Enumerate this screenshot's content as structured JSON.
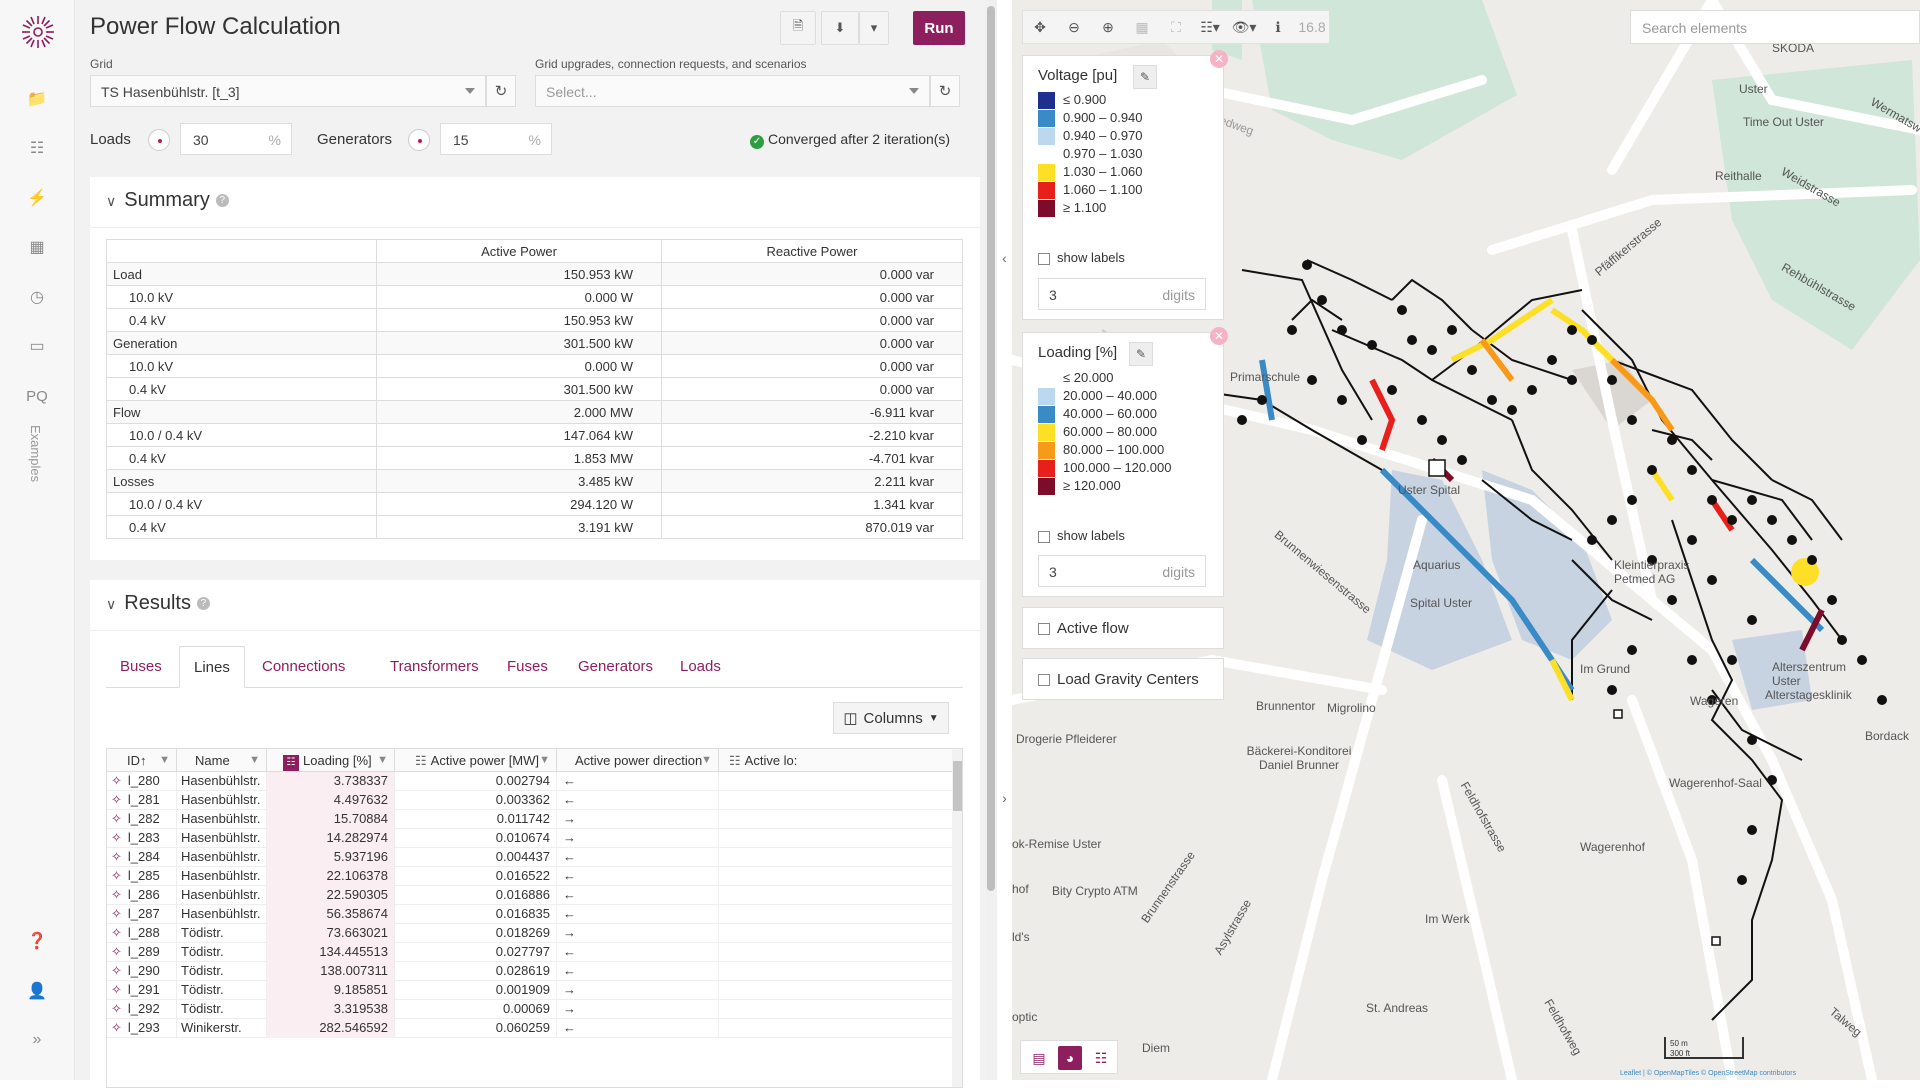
{
  "app": {
    "title": "Power Flow Calculation",
    "run_label": "Run"
  },
  "sidebar": {
    "examples_label": "Examples",
    "pq_label": "PQ"
  },
  "grid": {
    "label": "Grid",
    "value": "TS Hasenbühlstr. [t_3]"
  },
  "scenarios": {
    "label": "Grid upgrades, connection requests, and scenarios",
    "placeholder": "Select..."
  },
  "loads": {
    "label": "Loads",
    "value": "30",
    "unit": "%"
  },
  "generators": {
    "label": "Generators",
    "value": "15",
    "unit": "%"
  },
  "status": "Converged after 2 iteration(s)",
  "summary": {
    "title": "Summary",
    "headers": [
      "",
      "Active Power",
      "Reactive Power"
    ],
    "rows": [
      {
        "name": "Load",
        "p": "150.953 kW",
        "q": "0.000 var",
        "group": true
      },
      {
        "name": "10.0 kV",
        "p": "0.000 W",
        "q": "0.000 var",
        "group": false
      },
      {
        "name": "0.4 kV",
        "p": "150.953 kW",
        "q": "0.000 var",
        "group": false
      },
      {
        "name": "Generation",
        "p": "301.500 kW",
        "q": "0.000 var",
        "group": true
      },
      {
        "name": "10.0 kV",
        "p": "0.000 W",
        "q": "0.000 var",
        "group": false
      },
      {
        "name": "0.4 kV",
        "p": "301.500 kW",
        "q": "0.000 var",
        "group": false
      },
      {
        "name": "Flow",
        "p": "2.000 MW",
        "q": "-6.911 kvar",
        "group": true
      },
      {
        "name": "10.0 / 0.4 kV",
        "p": "147.064 kW",
        "q": "-2.210 kvar",
        "group": false
      },
      {
        "name": "0.4 kV",
        "p": "1.853 MW",
        "q": "-4.701 kvar",
        "group": false
      },
      {
        "name": "Losses",
        "p": "3.485 kW",
        "q": "2.211 kvar",
        "group": true
      },
      {
        "name": "10.0 / 0.4 kV",
        "p": "294.120 W",
        "q": "1.341 kvar",
        "group": false
      },
      {
        "name": "0.4 kV",
        "p": "3.191 kW",
        "q": "870.019 var",
        "group": false
      }
    ]
  },
  "results": {
    "title": "Results",
    "tabs": [
      "Buses",
      "Lines",
      "Connections",
      "Transformers",
      "Fuses",
      "Generators",
      "Loads"
    ],
    "active_tab": "Lines",
    "columns_label": "Columns",
    "headers": [
      "ID",
      "Name",
      "Loading [%]",
      "Active power [MW]",
      "Active power direction",
      "Active lo:"
    ],
    "rows": [
      {
        "id": "l_280",
        "name": "Hasenbühlstr.",
        "loading": "3.738337",
        "power": "0.002794",
        "dir": "←"
      },
      {
        "id": "l_281",
        "name": "Hasenbühlstr.",
        "loading": "4.497632",
        "power": "0.003362",
        "dir": "←"
      },
      {
        "id": "l_282",
        "name": "Hasenbühlstr.",
        "loading": "15.70884",
        "power": "0.011742",
        "dir": "→"
      },
      {
        "id": "l_283",
        "name": "Hasenbühlstr.",
        "loading": "14.282974",
        "power": "0.010674",
        "dir": "→"
      },
      {
        "id": "l_284",
        "name": "Hasenbühlstr.",
        "loading": "5.937196",
        "power": "0.004437",
        "dir": "←"
      },
      {
        "id": "l_285",
        "name": "Hasenbühlstr.",
        "loading": "22.106378",
        "power": "0.016522",
        "dir": "←"
      },
      {
        "id": "l_286",
        "name": "Hasenbühlstr.",
        "loading": "22.590305",
        "power": "0.016886",
        "dir": "←"
      },
      {
        "id": "l_287",
        "name": "Hasenbühlstr.",
        "loading": "56.358674",
        "power": "0.016835",
        "dir": "←"
      },
      {
        "id": "l_288",
        "name": "Tödistr.",
        "loading": "73.663021",
        "power": "0.018269",
        "dir": "→"
      },
      {
        "id": "l_289",
        "name": "Tödistr.",
        "loading": "134.445513",
        "power": "0.027797",
        "dir": "←"
      },
      {
        "id": "l_290",
        "name": "Tödistr.",
        "loading": "138.007311",
        "power": "0.028619",
        "dir": "←"
      },
      {
        "id": "l_291",
        "name": "Tödistr.",
        "loading": "9.185851",
        "power": "0.001909",
        "dir": "→"
      },
      {
        "id": "l_292",
        "name": "Tödistr.",
        "loading": "3.319538",
        "power": "0.00069",
        "dir": "→"
      },
      {
        "id": "l_293",
        "name": "Winikerstr.",
        "loading": "282.546592",
        "power": "0.060259",
        "dir": "←"
      }
    ]
  },
  "map": {
    "zoom": "16.8",
    "search_placeholder": "Search elements",
    "voltage_legend": {
      "title": "Voltage [pu]",
      "items": [
        {
          "label": "≤ 0.900",
          "color": "#1f2f8f"
        },
        {
          "label": "0.900  –  0.940",
          "color": "#3a8ac6"
        },
        {
          "label": "0.940  –  0.970",
          "color": "#bcd8ef"
        },
        {
          "label": "0.970  –  1.030",
          "color": "#ffffff"
        },
        {
          "label": "1.030  –  1.060",
          "color": "#fde025"
        },
        {
          "label": "1.060  –  1.100",
          "color": "#e8201c"
        },
        {
          "label": "≥ 1.100",
          "color": "#7d0c2a"
        }
      ],
      "show_labels": "show labels",
      "digits_value": "3",
      "digits_label": "digits"
    },
    "loading_legend": {
      "title": "Loading [%]",
      "items": [
        {
          "label": "≤ 20.000",
          "color": "#ffffff"
        },
        {
          "label": "20.000  –  40.000",
          "color": "#bcd8ef"
        },
        {
          "label": "40.000  –  60.000",
          "color": "#3a8ac6"
        },
        {
          "label": "60.000  –  80.000",
          "color": "#fde025"
        },
        {
          "label": "80.000  –  100.000",
          "color": "#f79a1a"
        },
        {
          "label": "100.000  –  120.000",
          "color": "#e8201c"
        },
        {
          "label": "≥ 120.000",
          "color": "#7d0c2a"
        }
      ],
      "show_labels": "show labels",
      "digits_value": "3",
      "digits_label": "digits"
    },
    "active_flow": "Active flow",
    "load_gravity": "Load Gravity Centers",
    "labels": [
      {
        "text": "SKODA"
      },
      {
        "text": "Uster"
      },
      {
        "text": "Time Out Uster"
      },
      {
        "text": "Reithalle"
      },
      {
        "text": "Weidstrasse"
      },
      {
        "text": "Wermatsw"
      },
      {
        "text": "Rehbühlstrasse"
      },
      {
        "text": "Pfäffikerstrasse"
      },
      {
        "text": "Langwiedweg"
      },
      {
        "text": "Primarschule"
      },
      {
        "text": "Uster Spital"
      },
      {
        "text": "Aquarius"
      },
      {
        "text": "Spital Uster"
      },
      {
        "text": "Brunnenwiesenstrasse"
      },
      {
        "text": "Kleintierpraxis Petmed AG"
      },
      {
        "text": "Im Grund"
      },
      {
        "text": "Alterszentrum Uster"
      },
      {
        "text": "Alterstagesklinik"
      },
      {
        "text": "Brunnentor"
      },
      {
        "text": "Migrolino"
      },
      {
        "text": "Drogerie Pfleiderer"
      },
      {
        "text": "Bäckerei-Konditorei Daniel Brunner"
      },
      {
        "text": "Wageren"
      },
      {
        "text": "Wagerenhof-Saal"
      },
      {
        "text": "Wagerenhof"
      },
      {
        "text": "Bordack"
      },
      {
        "text": "Feldhofstrasse"
      },
      {
        "text": "ok-Remise Uster"
      },
      {
        "text": "Bity Crypto ATM"
      },
      {
        "text": "Brunnenstrasse"
      },
      {
        "text": "Asylstrasse"
      },
      {
        "text": "Im Werk"
      },
      {
        "text": "St. Andreas"
      },
      {
        "text": "Diem"
      },
      {
        "text": "Feldhofweg"
      },
      {
        "text": "Talweg"
      },
      {
        "text": "hof"
      },
      {
        "text": "ld's"
      },
      {
        "text": "optic"
      }
    ],
    "scale_top": "50 m",
    "scale_bottom": "300 ft",
    "attribution": "Leaflet | © OpenMapTiles © OpenStreetMap contributors"
  }
}
